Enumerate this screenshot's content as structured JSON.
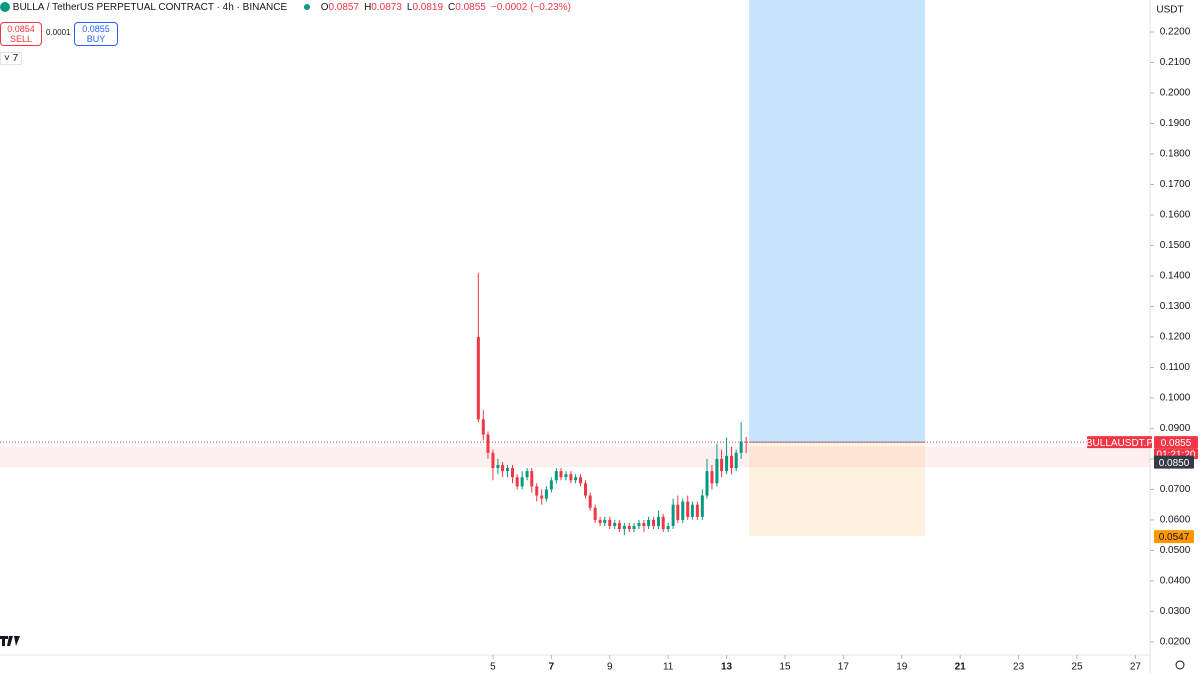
{
  "chart_data": {
    "type": "candlestick",
    "title": "BULLA / TetherUS PERPETUAL CONTRACT · 4h · BINANCE",
    "ohlc_legend": [
      "O",
      "0.0857",
      "H",
      "0.0873",
      "L",
      "0.0819",
      "C",
      "0.0855",
      "−0.0002 (−0.23%)"
    ],
    "trade": {
      "sell_price": "0.0854",
      "sell": "SELL",
      "spread": "0.0001",
      "buy_price": "0.0855",
      "buy": "BUY"
    },
    "indicators_count": "7",
    "currency": "USDT",
    "x": [
      4.5,
      4.67,
      4.83,
      5,
      5.17,
      5.33,
      5.5,
      5.67,
      5.83,
      6,
      6.17,
      6.33,
      6.5,
      6.67,
      6.83,
      7,
      7.17,
      7.33,
      7.5,
      7.67,
      7.83,
      8,
      8.17,
      8.33,
      8.5,
      8.67,
      8.83,
      9,
      9.17,
      9.33,
      9.5,
      9.67,
      9.83,
      10,
      10.17,
      10.33,
      10.5,
      10.67,
      10.83,
      11,
      11.17,
      11.33,
      11.5,
      11.67,
      11.83,
      12,
      12.17,
      12.33,
      12.5,
      12.67,
      12.83,
      13,
      13.17,
      13.33,
      13.5,
      13.67
    ],
    "open": [
      0.12,
      0.093,
      0.088,
      0.082,
      0.077,
      0.078,
      0.076,
      0.077,
      0.074,
      0.071,
      0.074,
      0.076,
      0.071,
      0.068,
      0.067,
      0.07,
      0.073,
      0.076,
      0.074,
      0.075,
      0.073,
      0.074,
      0.072,
      0.068,
      0.064,
      0.06,
      0.059,
      0.06,
      0.058,
      0.059,
      0.057,
      0.058,
      0.057,
      0.058,
      0.059,
      0.058,
      0.06,
      0.058,
      0.061,
      0.057,
      0.058,
      0.065,
      0.06,
      0.066,
      0.061,
      0.065,
      0.061,
      0.068,
      0.076,
      0.072,
      0.08,
      0.076,
      0.081,
      0.077,
      0.082,
      0.0857
    ],
    "high": [
      0.141,
      0.096,
      0.089,
      0.083,
      0.08,
      0.079,
      0.078,
      0.078,
      0.075,
      0.076,
      0.077,
      0.077,
      0.072,
      0.07,
      0.071,
      0.074,
      0.077,
      0.077,
      0.076,
      0.076,
      0.075,
      0.075,
      0.073,
      0.069,
      0.065,
      0.061,
      0.061,
      0.061,
      0.06,
      0.06,
      0.059,
      0.059,
      0.059,
      0.06,
      0.06,
      0.061,
      0.061,
      0.063,
      0.062,
      0.059,
      0.067,
      0.068,
      0.067,
      0.068,
      0.066,
      0.066,
      0.07,
      0.08,
      0.078,
      0.085,
      0.083,
      0.087,
      0.084,
      0.083,
      0.092,
      0.0873
    ],
    "low": [
      0.092,
      0.086,
      0.08,
      0.073,
      0.075,
      0.074,
      0.074,
      0.072,
      0.07,
      0.07,
      0.073,
      0.069,
      0.066,
      0.065,
      0.066,
      0.069,
      0.072,
      0.073,
      0.073,
      0.072,
      0.072,
      0.071,
      0.067,
      0.063,
      0.059,
      0.058,
      0.058,
      0.057,
      0.057,
      0.056,
      0.055,
      0.056,
      0.056,
      0.057,
      0.056,
      0.057,
      0.057,
      0.057,
      0.056,
      0.056,
      0.057,
      0.059,
      0.059,
      0.06,
      0.06,
      0.06,
      0.06,
      0.067,
      0.07,
      0.071,
      0.074,
      0.075,
      0.075,
      0.076,
      0.08,
      0.0819
    ],
    "close": [
      0.093,
      0.088,
      0.082,
      0.077,
      0.078,
      0.076,
      0.077,
      0.074,
      0.071,
      0.074,
      0.076,
      0.071,
      0.068,
      0.067,
      0.07,
      0.073,
      0.076,
      0.074,
      0.075,
      0.073,
      0.074,
      0.072,
      0.068,
      0.064,
      0.06,
      0.059,
      0.06,
      0.058,
      0.059,
      0.057,
      0.058,
      0.057,
      0.058,
      0.059,
      0.058,
      0.06,
      0.058,
      0.061,
      0.057,
      0.058,
      0.065,
      0.06,
      0.066,
      0.061,
      0.065,
      0.061,
      0.068,
      0.076,
      0.072,
      0.08,
      0.076,
      0.081,
      0.077,
      0.082,
      0.0857,
      0.0855
    ],
    "up_color": "#089981",
    "down_color": "#f23645",
    "xlim": [
      -11.88,
      27.5
    ],
    "xticks": [
      5,
      7,
      9,
      11,
      13,
      15,
      17,
      19,
      21,
      23,
      25,
      27
    ],
    "ylim": [
      0.0157,
      0.2305
    ],
    "yticks": [
      {
        "value": 0.02,
        "label": "0.0200"
      },
      {
        "value": 0.03,
        "label": "0.0300"
      },
      {
        "value": 0.04,
        "label": "0.0400"
      },
      {
        "value": 0.05,
        "label": "0.0500"
      },
      {
        "value": 0.06,
        "label": "0.0600"
      },
      {
        "value": 0.07,
        "label": "0.0700"
      },
      {
        "value": 0.08,
        "label": "0.0800"
      },
      {
        "value": 0.09,
        "label": "0.0900"
      },
      {
        "value": 0.1,
        "label": "0.1000"
      },
      {
        "value": 0.11,
        "label": "0.1100"
      },
      {
        "value": 0.12,
        "label": "0.1200"
      },
      {
        "value": 0.13,
        "label": "0.1300"
      },
      {
        "value": 0.14,
        "label": "0.1400"
      },
      {
        "value": 0.15,
        "label": "0.1500"
      },
      {
        "value": 0.16,
        "label": "0.1600"
      },
      {
        "value": 0.17,
        "label": "0.1700"
      },
      {
        "value": 0.18,
        "label": "0.1800"
      },
      {
        "value": 0.19,
        "label": "0.1900"
      },
      {
        "value": 0.2,
        "label": "0.2000"
      },
      {
        "value": 0.21,
        "label": "0.2100"
      },
      {
        "value": 0.22,
        "label": "0.2200"
      }
    ],
    "zone": {
      "low": 0.0773,
      "high": 0.084
    },
    "position": {
      "entry": 0.0855,
      "stop": 0.0547,
      "x_start": 13.77,
      "x_end": 19.8
    },
    "symbol_label": "BULLAUSDT.P",
    "last_price": {
      "value": 0.0855,
      "label": "0.0855"
    },
    "countdown": "01:21:20",
    "level_label": {
      "value": 0.085,
      "label": "0.0850"
    },
    "stop_label": {
      "value": 0.0547,
      "label": "0.0547"
    }
  }
}
